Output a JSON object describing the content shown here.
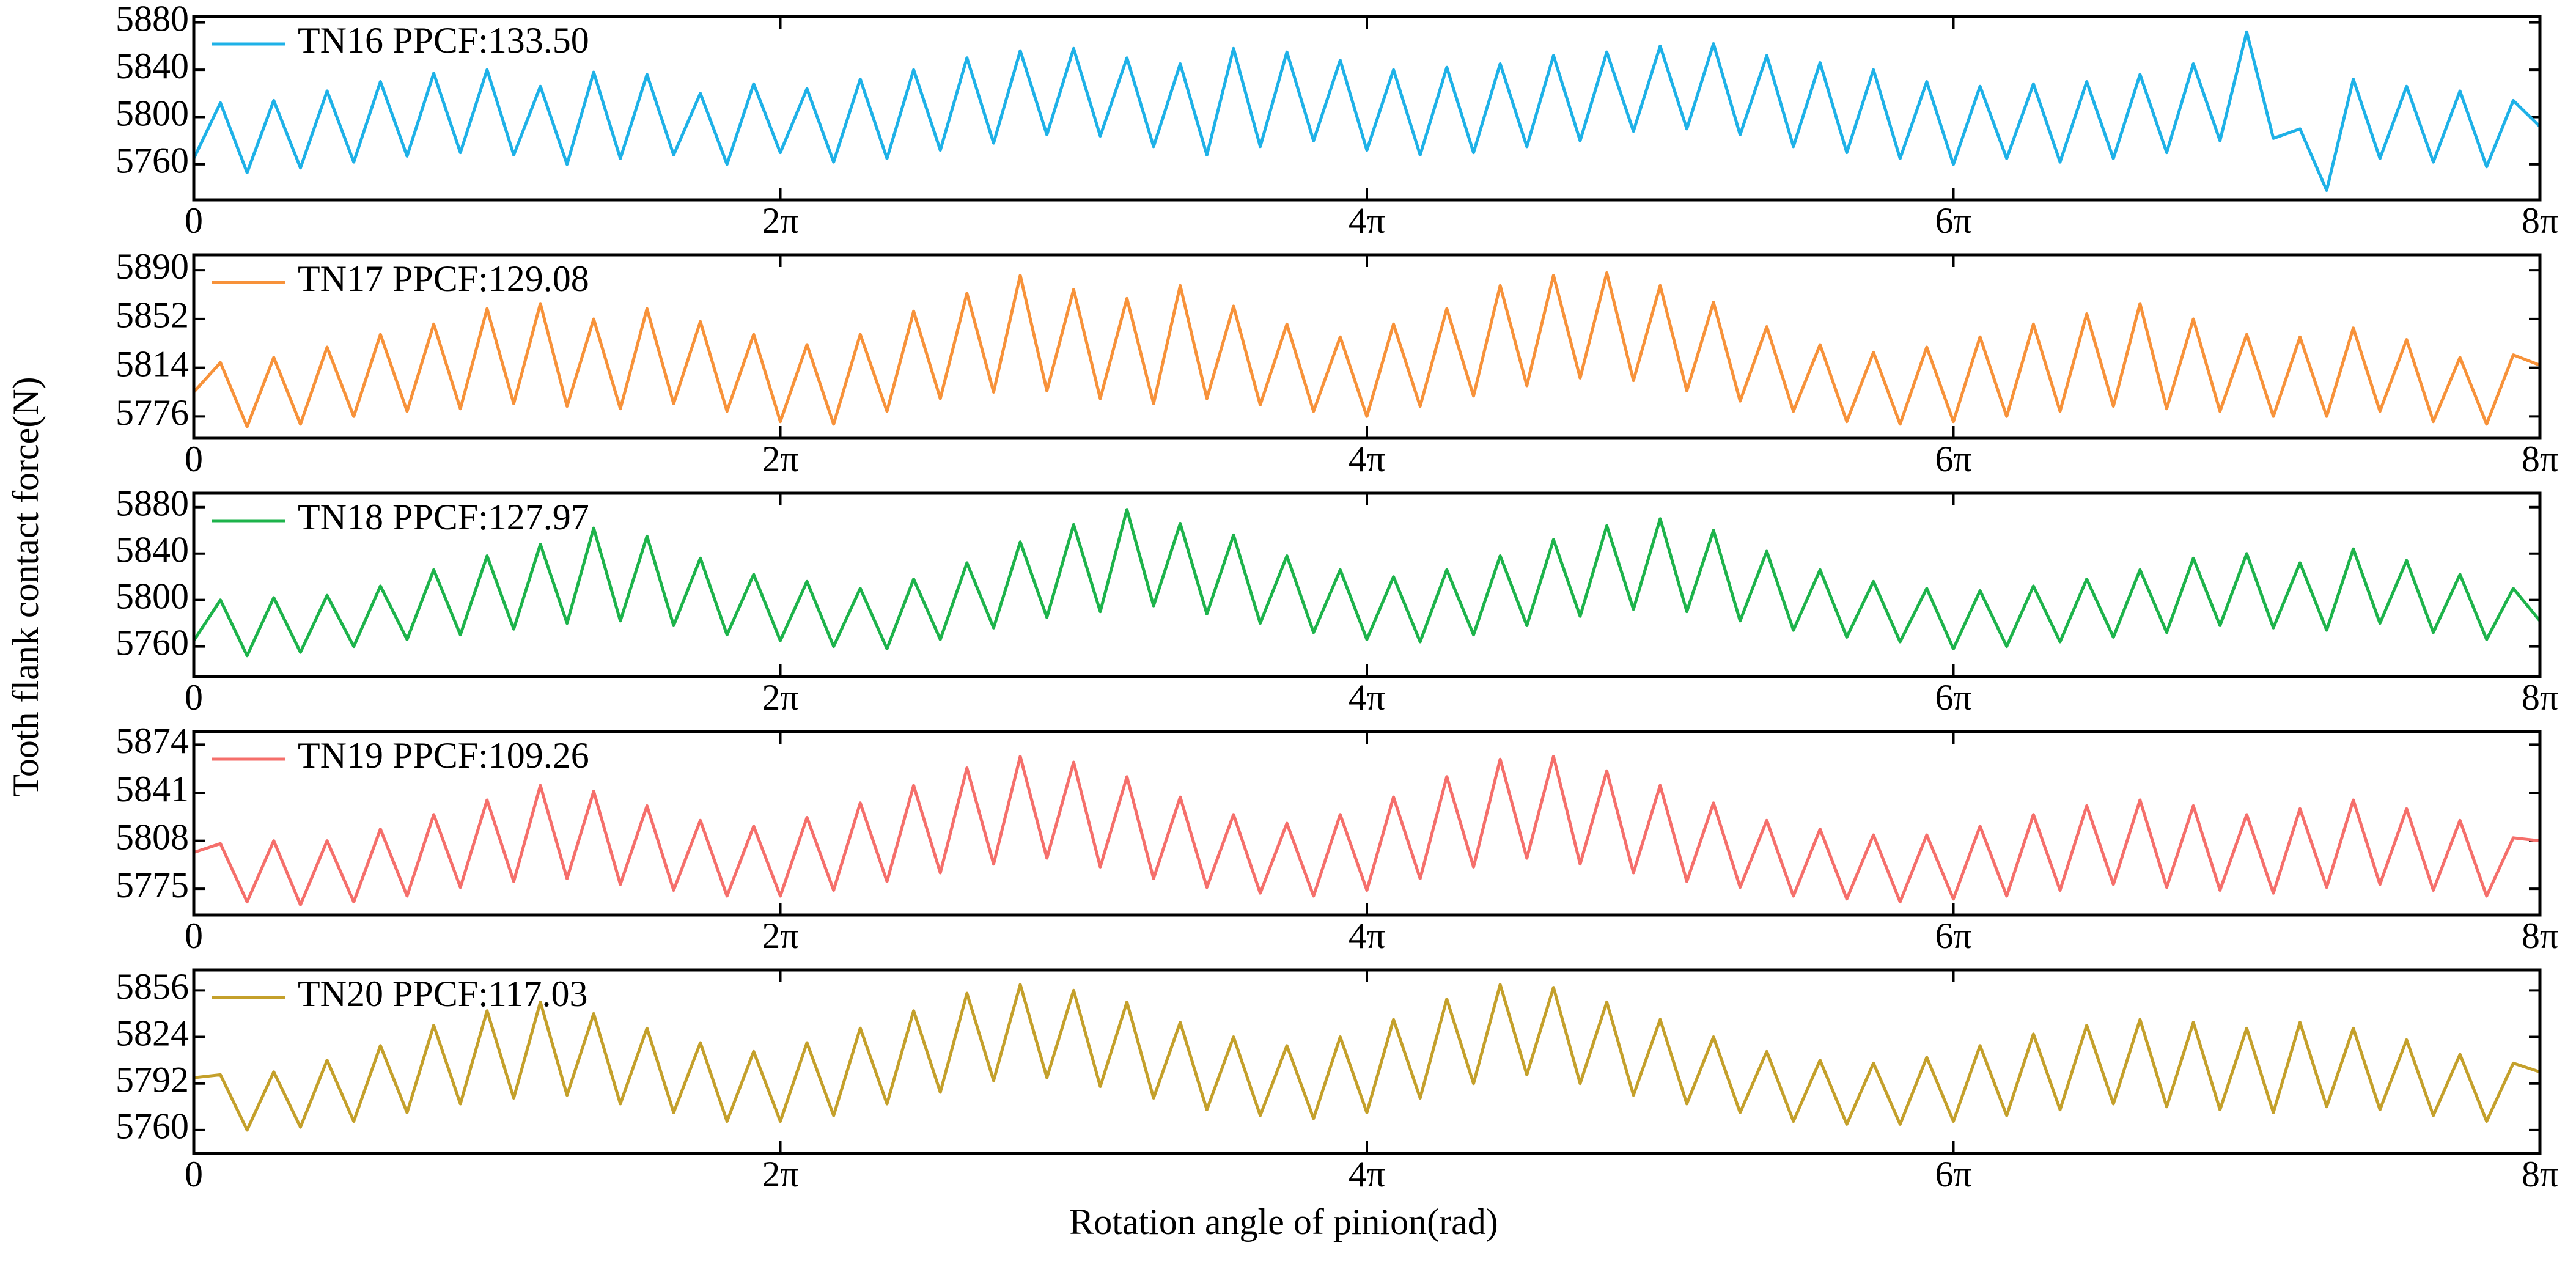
{
  "xlabel": "Rotation angle of pinion(rad)",
  "ylabel": "Tooth flank contact force(N)",
  "chart_data": [
    {
      "type": "line",
      "x": [
        0,
        0.2856,
        0.5712,
        0.8568,
        1.1424,
        1.428,
        1.7136,
        1.9992,
        2.2848,
        2.5704,
        2.856,
        3.1416,
        3.4272,
        3.7128,
        3.9984,
        4.284,
        4.5696,
        4.8552,
        5.1408,
        5.4264,
        5.712,
        5.9976,
        6.2832,
        6.5688,
        6.8544,
        7.14,
        7.4256,
        7.7112,
        7.9968,
        8.2824,
        8.568,
        8.8536,
        9.1392,
        9.4248,
        9.7104,
        9.996,
        10.2816,
        10.5672,
        10.8528,
        11.1384,
        11.424,
        11.7096,
        11.9952,
        12.2808,
        12.5664,
        12.852,
        13.1376,
        13.4232,
        13.7088,
        13.9944,
        14.28,
        14.5656,
        14.8512,
        15.1368,
        15.4224,
        15.708,
        15.9936,
        16.2792,
        16.5648,
        16.8504,
        17.136,
        17.4216,
        17.7072,
        17.9928,
        18.2784,
        18.564,
        18.8496,
        19.1352,
        19.4208,
        19.7064,
        19.992,
        20.2776,
        20.5632,
        20.8488,
        21.1344,
        21.42,
        21.7056,
        21.9912,
        22.2768,
        22.5624,
        22.848,
        23.1336,
        23.4192,
        23.7048,
        23.9904,
        24.276,
        24.5616,
        24.8472,
        25.1327
      ],
      "xlim": [
        0,
        25.1327
      ],
      "xticks": [
        0,
        {
          "value": 6.2832,
          "label": "2π"
        },
        {
          "value": 12.5664,
          "label": "4π"
        },
        {
          "value": 18.8496,
          "label": "6π"
        },
        {
          "value": 25.1327,
          "label": "8π"
        }
      ],
      "ylim": [
        5730,
        5885
      ],
      "yticks": [
        5760,
        5800,
        5840,
        5880
      ],
      "series": [
        {
          "name": "TN16 PPCF:133.50",
          "color": "#1eb1e7",
          "values": [
            5765,
            5812,
            5753,
            5814,
            5757,
            5822,
            5762,
            5830,
            5767,
            5837,
            5770,
            5840,
            5768,
            5826,
            5760,
            5838,
            5765,
            5836,
            5768,
            5820,
            5760,
            5828,
            5770,
            5824,
            5762,
            5832,
            5765,
            5840,
            5772,
            5850,
            5778,
            5856,
            5785,
            5858,
            5784,
            5850,
            5775,
            5845,
            5768,
            5858,
            5775,
            5855,
            5780,
            5848,
            5772,
            5840,
            5768,
            5842,
            5770,
            5845,
            5775,
            5852,
            5780,
            5855,
            5788,
            5860,
            5790,
            5862,
            5785,
            5852,
            5775,
            5846,
            5770,
            5840,
            5765,
            5830,
            5760,
            5826,
            5765,
            5828,
            5762,
            5830,
            5765,
            5836,
            5770,
            5845,
            5780,
            5872,
            5782,
            5790,
            5738,
            5832,
            5765,
            5826,
            5762,
            5822,
            5758,
            5814,
            5792
          ]
        }
      ]
    },
    {
      "type": "line",
      "x": [
        0,
        0.2856,
        0.5712,
        0.8568,
        1.1424,
        1.428,
        1.7136,
        1.9992,
        2.2848,
        2.5704,
        2.856,
        3.1416,
        3.4272,
        3.7128,
        3.9984,
        4.284,
        4.5696,
        4.8552,
        5.1408,
        5.4264,
        5.712,
        5.9976,
        6.2832,
        6.5688,
        6.8544,
        7.14,
        7.4256,
        7.7112,
        7.9968,
        8.2824,
        8.568,
        8.8536,
        9.1392,
        9.4248,
        9.7104,
        9.996,
        10.2816,
        10.5672,
        10.8528,
        11.1384,
        11.424,
        11.7096,
        11.9952,
        12.2808,
        12.5664,
        12.852,
        13.1376,
        13.4232,
        13.7088,
        13.9944,
        14.28,
        14.5656,
        14.8512,
        15.1368,
        15.4224,
        15.708,
        15.9936,
        16.2792,
        16.5648,
        16.8504,
        17.136,
        17.4216,
        17.7072,
        17.9928,
        18.2784,
        18.564,
        18.8496,
        19.1352,
        19.4208,
        19.7064,
        19.992,
        20.2776,
        20.5632,
        20.8488,
        21.1344,
        21.42,
        21.7056,
        21.9912,
        22.2768,
        22.5624,
        22.848,
        23.1336,
        23.4192,
        23.7048,
        23.9904,
        24.276,
        24.5616,
        24.8472,
        25.1327
      ],
      "xlim": [
        0,
        25.1327
      ],
      "xticks": [
        0,
        {
          "value": 6.2832,
          "label": "2π"
        },
        {
          "value": 12.5664,
          "label": "4π"
        },
        {
          "value": 18.8496,
          "label": "6π"
        },
        {
          "value": 25.1327,
          "label": "8π"
        }
      ],
      "ylim": [
        5759,
        5902
      ],
      "yticks": [
        5776,
        5814,
        5852,
        5890
      ],
      "series": [
        {
          "name": "TN17 PPCF:129.08",
          "color": "#f7923a",
          "values": [
            5795,
            5818,
            5768,
            5822,
            5770,
            5830,
            5776,
            5840,
            5780,
            5848,
            5782,
            5860,
            5786,
            5864,
            5784,
            5852,
            5782,
            5860,
            5786,
            5850,
            5780,
            5840,
            5772,
            5832,
            5770,
            5840,
            5780,
            5858,
            5790,
            5872,
            5795,
            5886,
            5796,
            5875,
            5790,
            5868,
            5786,
            5878,
            5790,
            5862,
            5785,
            5848,
            5780,
            5838,
            5776,
            5848,
            5784,
            5860,
            5792,
            5878,
            5800,
            5886,
            5806,
            5888,
            5804,
            5878,
            5796,
            5865,
            5788,
            5846,
            5780,
            5832,
            5772,
            5826,
            5770,
            5830,
            5772,
            5838,
            5776,
            5848,
            5780,
            5856,
            5784,
            5864,
            5782,
            5852,
            5780,
            5840,
            5776,
            5838,
            5776,
            5845,
            5780,
            5836,
            5772,
            5822,
            5770,
            5824,
            5816
          ]
        }
      ]
    },
    {
      "type": "line",
      "x": [
        0,
        0.2856,
        0.5712,
        0.8568,
        1.1424,
        1.428,
        1.7136,
        1.9992,
        2.2848,
        2.5704,
        2.856,
        3.1416,
        3.4272,
        3.7128,
        3.9984,
        4.284,
        4.5696,
        4.8552,
        5.1408,
        5.4264,
        5.712,
        5.9976,
        6.2832,
        6.5688,
        6.8544,
        7.14,
        7.4256,
        7.7112,
        7.9968,
        8.2824,
        8.568,
        8.8536,
        9.1392,
        9.4248,
        9.7104,
        9.996,
        10.2816,
        10.5672,
        10.8528,
        11.1384,
        11.424,
        11.7096,
        11.9952,
        12.2808,
        12.5664,
        12.852,
        13.1376,
        13.4232,
        13.7088,
        13.9944,
        14.28,
        14.5656,
        14.8512,
        15.1368,
        15.4224,
        15.708,
        15.9936,
        16.2792,
        16.5648,
        16.8504,
        17.136,
        17.4216,
        17.7072,
        17.9928,
        18.2784,
        18.564,
        18.8496,
        19.1352,
        19.4208,
        19.7064,
        19.992,
        20.2776,
        20.5632,
        20.8488,
        21.1344,
        21.42,
        21.7056,
        21.9912,
        22.2768,
        22.5624,
        22.848,
        23.1336,
        23.4192,
        23.7048,
        23.9904,
        24.276,
        24.5616,
        24.8472,
        25.1327
      ],
      "xlim": [
        0,
        25.1327
      ],
      "xticks": [
        0,
        {
          "value": 6.2832,
          "label": "2π"
        },
        {
          "value": 12.5664,
          "label": "4π"
        },
        {
          "value": 18.8496,
          "label": "6π"
        },
        {
          "value": 25.1327,
          "label": "8π"
        }
      ],
      "ylim": [
        5734,
        5892
      ],
      "yticks": [
        5760,
        5800,
        5840,
        5880
      ],
      "series": [
        {
          "name": "TN18 PPCF:127.97",
          "color": "#1db34b",
          "values": [
            5765,
            5800,
            5752,
            5802,
            5755,
            5804,
            5760,
            5812,
            5766,
            5826,
            5770,
            5838,
            5775,
            5848,
            5780,
            5862,
            5782,
            5855,
            5778,
            5836,
            5770,
            5822,
            5765,
            5816,
            5760,
            5810,
            5758,
            5818,
            5766,
            5832,
            5776,
            5850,
            5785,
            5865,
            5790,
            5878,
            5795,
            5866,
            5788,
            5856,
            5780,
            5838,
            5772,
            5826,
            5766,
            5820,
            5764,
            5826,
            5770,
            5838,
            5778,
            5852,
            5786,
            5864,
            5792,
            5870,
            5790,
            5860,
            5782,
            5842,
            5774,
            5826,
            5768,
            5816,
            5764,
            5810,
            5758,
            5808,
            5760,
            5812,
            5764,
            5818,
            5768,
            5826,
            5772,
            5836,
            5778,
            5840,
            5776,
            5832,
            5774,
            5844,
            5780,
            5834,
            5772,
            5822,
            5766,
            5810,
            5782
          ]
        }
      ]
    },
    {
      "type": "line",
      "x": [
        0,
        0.2856,
        0.5712,
        0.8568,
        1.1424,
        1.428,
        1.7136,
        1.9992,
        2.2848,
        2.5704,
        2.856,
        3.1416,
        3.4272,
        3.7128,
        3.9984,
        4.284,
        4.5696,
        4.8552,
        5.1408,
        5.4264,
        5.712,
        5.9976,
        6.2832,
        6.5688,
        6.8544,
        7.14,
        7.4256,
        7.7112,
        7.9968,
        8.2824,
        8.568,
        8.8536,
        9.1392,
        9.4248,
        9.7104,
        9.996,
        10.2816,
        10.5672,
        10.8528,
        11.1384,
        11.424,
        11.7096,
        11.9952,
        12.2808,
        12.5664,
        12.852,
        13.1376,
        13.4232,
        13.7088,
        13.9944,
        14.28,
        14.5656,
        14.8512,
        15.1368,
        15.4224,
        15.708,
        15.9936,
        16.2792,
        16.5648,
        16.8504,
        17.136,
        17.4216,
        17.7072,
        17.9928,
        18.2784,
        18.564,
        18.8496,
        19.1352,
        19.4208,
        19.7064,
        19.992,
        20.2776,
        20.5632,
        20.8488,
        21.1344,
        21.42,
        21.7056,
        21.9912,
        22.2768,
        22.5624,
        22.848,
        23.1336,
        23.4192,
        23.7048,
        23.9904,
        24.276,
        24.5616,
        24.8472,
        25.1327
      ],
      "xlim": [
        0,
        25.1327
      ],
      "xticks": [
        0,
        {
          "value": 6.2832,
          "label": "2π"
        },
        {
          "value": 12.5664,
          "label": "4π"
        },
        {
          "value": 18.8496,
          "label": "6π"
        },
        {
          "value": 25.1327,
          "label": "8π"
        }
      ],
      "ylim": [
        5757,
        5883
      ],
      "yticks": [
        5775,
        5808,
        5841,
        5874
      ],
      "series": [
        {
          "name": "TN19 PPCF:109.26",
          "color": "#f56f6b",
          "values": [
            5800,
            5806,
            5766,
            5808,
            5764,
            5808,
            5766,
            5816,
            5770,
            5826,
            5776,
            5836,
            5780,
            5846,
            5782,
            5842,
            5778,
            5832,
            5774,
            5822,
            5770,
            5818,
            5770,
            5824,
            5774,
            5834,
            5780,
            5846,
            5786,
            5858,
            5792,
            5866,
            5796,
            5862,
            5790,
            5852,
            5782,
            5838,
            5776,
            5826,
            5772,
            5820,
            5770,
            5826,
            5774,
            5838,
            5782,
            5852,
            5790,
            5864,
            5796,
            5866,
            5792,
            5856,
            5786,
            5846,
            5780,
            5834,
            5776,
            5822,
            5770,
            5816,
            5768,
            5812,
            5766,
            5812,
            5768,
            5818,
            5770,
            5826,
            5774,
            5832,
            5778,
            5836,
            5776,
            5832,
            5774,
            5826,
            5772,
            5830,
            5776,
            5836,
            5778,
            5830,
            5774,
            5822,
            5770,
            5810,
            5808
          ]
        }
      ]
    },
    {
      "type": "line",
      "x": [
        0,
        0.2856,
        0.5712,
        0.8568,
        1.1424,
        1.428,
        1.7136,
        1.9992,
        2.2848,
        2.5704,
        2.856,
        3.1416,
        3.4272,
        3.7128,
        3.9984,
        4.284,
        4.5696,
        4.8552,
        5.1408,
        5.4264,
        5.712,
        5.9976,
        6.2832,
        6.5688,
        6.8544,
        7.14,
        7.4256,
        7.7112,
        7.9968,
        8.2824,
        8.568,
        8.8536,
        9.1392,
        9.4248,
        9.7104,
        9.996,
        10.2816,
        10.5672,
        10.8528,
        11.1384,
        11.424,
        11.7096,
        11.9952,
        12.2808,
        12.5664,
        12.852,
        13.1376,
        13.4232,
        13.7088,
        13.9944,
        14.28,
        14.5656,
        14.8512,
        15.1368,
        15.4224,
        15.708,
        15.9936,
        16.2792,
        16.5648,
        16.8504,
        17.136,
        17.4216,
        17.7072,
        17.9928,
        18.2784,
        18.564,
        18.8496,
        19.1352,
        19.4208,
        19.7064,
        19.992,
        20.2776,
        20.5632,
        20.8488,
        21.1344,
        21.42,
        21.7056,
        21.9912,
        22.2768,
        22.5624,
        22.848,
        23.1336,
        23.4192,
        23.7048,
        23.9904,
        24.276,
        24.5616,
        24.8472,
        25.1327
      ],
      "xlim": [
        0,
        25.1327
      ],
      "xticks": [
        0,
        {
          "value": 6.2832,
          "label": "2π"
        },
        {
          "value": 12.5664,
          "label": "4π"
        },
        {
          "value": 18.8496,
          "label": "6π"
        },
        {
          "value": 25.1327,
          "label": "8π"
        }
      ],
      "ylim": [
        5744,
        5870
      ],
      "yticks": [
        5760,
        5792,
        5824,
        5856
      ],
      "series": [
        {
          "name": "TN20 PPCF:117.03",
          "color": "#c4a02b",
          "values": [
            5796,
            5798,
            5760,
            5800,
            5762,
            5808,
            5766,
            5818,
            5772,
            5832,
            5778,
            5842,
            5782,
            5848,
            5784,
            5840,
            5778,
            5830,
            5772,
            5820,
            5766,
            5814,
            5766,
            5820,
            5770,
            5830,
            5778,
            5842,
            5786,
            5854,
            5794,
            5860,
            5796,
            5856,
            5790,
            5848,
            5782,
            5834,
            5774,
            5824,
            5770,
            5818,
            5768,
            5824,
            5772,
            5836,
            5782,
            5850,
            5792,
            5860,
            5798,
            5858,
            5792,
            5848,
            5784,
            5836,
            5778,
            5824,
            5772,
            5814,
            5766,
            5808,
            5764,
            5806,
            5764,
            5810,
            5766,
            5818,
            5770,
            5826,
            5774,
            5832,
            5778,
            5836,
            5776,
            5834,
            5774,
            5830,
            5772,
            5834,
            5776,
            5830,
            5774,
            5822,
            5770,
            5812,
            5766,
            5806,
            5800
          ]
        }
      ]
    }
  ]
}
